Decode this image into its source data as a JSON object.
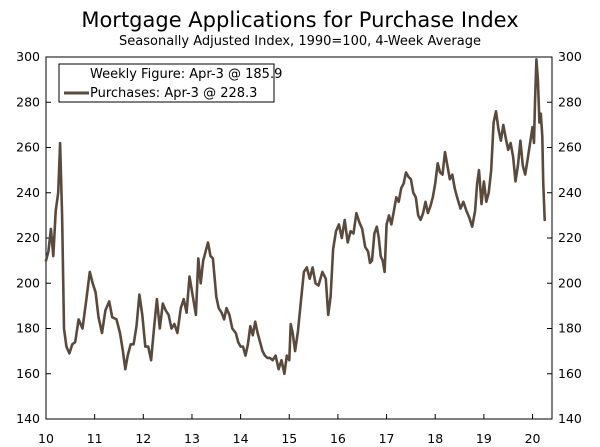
{
  "chart_data": {
    "type": "line",
    "title": "Mortgage Applications for Purchase Index",
    "subtitle": "Seasonally Adjusted Index, 1990=100, 4-Week Average",
    "xlabel": "",
    "ylabel": "",
    "xlim": [
      2010,
      2020.4
    ],
    "ylim": [
      140,
      300
    ],
    "x_ticks": [
      {
        "value": 2010,
        "label": "10"
      },
      {
        "value": 2011,
        "label": "11"
      },
      {
        "value": 2012,
        "label": "12"
      },
      {
        "value": 2013,
        "label": "13"
      },
      {
        "value": 2014,
        "label": "14"
      },
      {
        "value": 2015,
        "label": "15"
      },
      {
        "value": 2016,
        "label": "16"
      },
      {
        "value": 2017,
        "label": "17"
      },
      {
        "value": 2018,
        "label": "18"
      },
      {
        "value": 2019,
        "label": "19"
      },
      {
        "value": 2020,
        "label": "20"
      }
    ],
    "y_ticks": [
      140,
      160,
      180,
      200,
      220,
      240,
      260,
      280,
      300
    ],
    "grid": false,
    "legend_position": "top-left",
    "legend": {
      "weekly_label": "Weekly Figure: Apr-3 @ 185.9",
      "purchases_label": "Purchases: Apr-3 @ 228.3"
    },
    "colors": {
      "line": "#5a4a3e",
      "axis": "#000000"
    },
    "series": [
      {
        "name": "Purchases",
        "points": [
          [
            2010.0,
            210
          ],
          [
            2010.05,
            214
          ],
          [
            2010.1,
            224
          ],
          [
            2010.15,
            212
          ],
          [
            2010.2,
            232
          ],
          [
            2010.25,
            240
          ],
          [
            2010.29,
            262
          ],
          [
            2010.33,
            230
          ],
          [
            2010.37,
            180
          ],
          [
            2010.42,
            172
          ],
          [
            2010.48,
            169
          ],
          [
            2010.54,
            173
          ],
          [
            2010.6,
            174
          ],
          [
            2010.67,
            184
          ],
          [
            2010.75,
            180
          ],
          [
            2010.83,
            193
          ],
          [
            2010.9,
            205
          ],
          [
            2010.96,
            200
          ],
          [
            2011.02,
            196
          ],
          [
            2011.08,
            185
          ],
          [
            2011.15,
            178
          ],
          [
            2011.22,
            188
          ],
          [
            2011.3,
            192
          ],
          [
            2011.36,
            185
          ],
          [
            2011.45,
            184
          ],
          [
            2011.52,
            178
          ],
          [
            2011.58,
            170
          ],
          [
            2011.63,
            162
          ],
          [
            2011.68,
            168
          ],
          [
            2011.74,
            173
          ],
          [
            2011.8,
            173
          ],
          [
            2011.86,
            181
          ],
          [
            2011.92,
            195
          ],
          [
            2011.98,
            186
          ],
          [
            2012.04,
            172
          ],
          [
            2012.1,
            172
          ],
          [
            2012.16,
            166
          ],
          [
            2012.22,
            180
          ],
          [
            2012.28,
            193
          ],
          [
            2012.34,
            180
          ],
          [
            2012.4,
            191
          ],
          [
            2012.46,
            188
          ],
          [
            2012.52,
            186
          ],
          [
            2012.58,
            180
          ],
          [
            2012.64,
            182
          ],
          [
            2012.7,
            178
          ],
          [
            2012.77,
            189
          ],
          [
            2012.83,
            193
          ],
          [
            2012.89,
            187
          ],
          [
            2012.95,
            203
          ],
          [
            2013.02,
            194
          ],
          [
            2013.08,
            186
          ],
          [
            2013.13,
            211
          ],
          [
            2013.18,
            200
          ],
          [
            2013.23,
            210
          ],
          [
            2013.28,
            214
          ],
          [
            2013.33,
            218
          ],
          [
            2013.38,
            212
          ],
          [
            2013.43,
            211
          ],
          [
            2013.5,
            194
          ],
          [
            2013.55,
            189
          ],
          [
            2013.61,
            187
          ],
          [
            2013.66,
            184
          ],
          [
            2013.71,
            189
          ],
          [
            2013.77,
            186
          ],
          [
            2013.83,
            180
          ],
          [
            2013.9,
            178
          ],
          [
            2013.95,
            174
          ],
          [
            2014.0,
            172
          ],
          [
            2014.05,
            172
          ],
          [
            2014.1,
            168
          ],
          [
            2014.15,
            173
          ],
          [
            2014.2,
            181
          ],
          [
            2014.25,
            177
          ],
          [
            2014.3,
            183
          ],
          [
            2014.35,
            178
          ],
          [
            2014.4,
            174
          ],
          [
            2014.45,
            170
          ],
          [
            2014.5,
            168
          ],
          [
            2014.55,
            167
          ],
          [
            2014.6,
            167
          ],
          [
            2014.66,
            166
          ],
          [
            2014.72,
            168
          ],
          [
            2014.78,
            162
          ],
          [
            2014.84,
            166
          ],
          [
            2014.9,
            160
          ],
          [
            2014.95,
            168
          ],
          [
            2015.0,
            166
          ],
          [
            2015.03,
            182
          ],
          [
            2015.07,
            178
          ],
          [
            2015.12,
            170
          ],
          [
            2015.18,
            179
          ],
          [
            2015.24,
            192
          ],
          [
            2015.3,
            205
          ],
          [
            2015.36,
            207
          ],
          [
            2015.42,
            202
          ],
          [
            2015.48,
            207
          ],
          [
            2015.54,
            200
          ],
          [
            2015.6,
            199
          ],
          [
            2015.68,
            205
          ],
          [
            2015.75,
            202
          ],
          [
            2015.8,
            186
          ],
          [
            2015.85,
            194
          ],
          [
            2015.9,
            215
          ],
          [
            2015.96,
            223
          ],
          [
            2016.02,
            226
          ],
          [
            2016.08,
            220
          ],
          [
            2016.14,
            228
          ],
          [
            2016.2,
            218
          ],
          [
            2016.26,
            223
          ],
          [
            2016.32,
            222
          ],
          [
            2016.38,
            231
          ],
          [
            2016.44,
            227
          ],
          [
            2016.5,
            224
          ],
          [
            2016.56,
            216
          ],
          [
            2016.62,
            214
          ],
          [
            2016.66,
            209
          ],
          [
            2016.7,
            210
          ],
          [
            2016.75,
            222
          ],
          [
            2016.8,
            225
          ],
          [
            2016.84,
            220
          ],
          [
            2016.88,
            212
          ],
          [
            2016.92,
            210
          ],
          [
            2016.96,
            205
          ],
          [
            2017.0,
            226
          ],
          [
            2017.05,
            230
          ],
          [
            2017.1,
            226
          ],
          [
            2017.15,
            232
          ],
          [
            2017.2,
            238
          ],
          [
            2017.25,
            236
          ],
          [
            2017.3,
            242
          ],
          [
            2017.35,
            244
          ],
          [
            2017.4,
            249
          ],
          [
            2017.45,
            247
          ],
          [
            2017.5,
            246
          ],
          [
            2017.55,
            240
          ],
          [
            2017.6,
            238
          ],
          [
            2017.65,
            230
          ],
          [
            2017.7,
            228
          ],
          [
            2017.75,
            231
          ],
          [
            2017.8,
            236
          ],
          [
            2017.85,
            231
          ],
          [
            2017.9,
            234
          ],
          [
            2017.95,
            238
          ],
          [
            2018.0,
            244
          ],
          [
            2018.05,
            253
          ],
          [
            2018.1,
            249
          ],
          [
            2018.15,
            248
          ],
          [
            2018.2,
            258
          ],
          [
            2018.25,
            252
          ],
          [
            2018.3,
            246
          ],
          [
            2018.35,
            248
          ],
          [
            2018.4,
            242
          ],
          [
            2018.45,
            238
          ],
          [
            2018.52,
            233
          ],
          [
            2018.58,
            236
          ],
          [
            2018.64,
            232
          ],
          [
            2018.7,
            229
          ],
          [
            2018.76,
            225
          ],
          [
            2018.82,
            232
          ],
          [
            2018.86,
            244
          ],
          [
            2018.9,
            250
          ],
          [
            2018.95,
            235
          ],
          [
            2019.0,
            245
          ],
          [
            2019.05,
            236
          ],
          [
            2019.1,
            240
          ],
          [
            2019.15,
            250
          ],
          [
            2019.2,
            271
          ],
          [
            2019.25,
            276
          ],
          [
            2019.3,
            268
          ],
          [
            2019.35,
            263
          ],
          [
            2019.4,
            270
          ],
          [
            2019.45,
            264
          ],
          [
            2019.5,
            259
          ],
          [
            2019.55,
            262
          ],
          [
            2019.6,
            256
          ],
          [
            2019.65,
            245
          ],
          [
            2019.7,
            252
          ],
          [
            2019.75,
            263
          ],
          [
            2019.8,
            252
          ],
          [
            2019.85,
            248
          ],
          [
            2019.9,
            255
          ],
          [
            2019.95,
            262
          ],
          [
            2020.0,
            269
          ],
          [
            2020.03,
            262
          ],
          [
            2020.05,
            280
          ],
          [
            2020.08,
            299
          ],
          [
            2020.11,
            290
          ],
          [
            2020.14,
            271
          ],
          [
            2020.17,
            275
          ],
          [
            2020.2,
            265
          ],
          [
            2020.22,
            245
          ],
          [
            2020.25,
            228
          ]
        ]
      }
    ]
  }
}
